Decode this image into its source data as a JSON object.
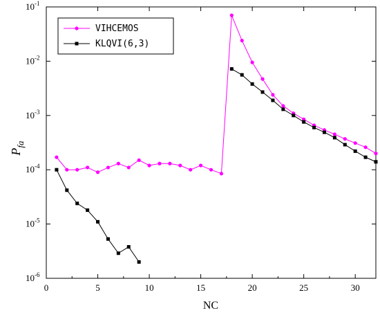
{
  "chart_data": {
    "type": "line",
    "xlabel": "NC",
    "ylabel": {
      "base": "P",
      "sub": "fa"
    },
    "xlim": [
      0,
      32
    ],
    "ylim": [
      1e-06,
      0.1
    ],
    "yscale": "log",
    "x_ticks": [
      0,
      5,
      10,
      15,
      20,
      25,
      30
    ],
    "y_ticks": [
      {
        "value": 1e-06,
        "base": "10",
        "exp": "-6"
      },
      {
        "value": 1e-05,
        "base": "10",
        "exp": "-5"
      },
      {
        "value": 0.0001,
        "base": "10",
        "exp": "-4"
      },
      {
        "value": 0.001,
        "base": "10",
        "exp": "-3"
      },
      {
        "value": 0.01,
        "base": "10",
        "exp": "-2"
      },
      {
        "value": 0.1,
        "base": "10",
        "exp": "-1"
      }
    ],
    "grid": false,
    "legend_position": "top-left",
    "series": [
      {
        "name": "VIHCEMOS",
        "color": "#ff00ff",
        "marker": "circle",
        "points": [
          [
            1,
            0.00017
          ],
          [
            2,
            0.0001
          ],
          [
            3,
            0.0001
          ],
          [
            4,
            0.00011
          ],
          [
            5,
            9e-05
          ],
          [
            6,
            0.00011
          ],
          [
            7,
            0.00013
          ],
          [
            8,
            0.00011
          ],
          [
            9,
            0.00015
          ],
          [
            10,
            0.00012
          ],
          [
            11,
            0.00013
          ],
          [
            12,
            0.00013
          ],
          [
            13,
            0.00012
          ],
          [
            14,
            0.0001
          ],
          [
            15,
            0.00012
          ],
          [
            16,
            0.0001
          ],
          [
            17,
            8.5e-05
          ],
          [
            18,
            0.07
          ],
          [
            19,
            0.024
          ],
          [
            20,
            0.0095
          ],
          [
            21,
            0.0047
          ],
          [
            22,
            0.0024
          ],
          [
            23,
            0.0015
          ],
          [
            24,
            0.0011
          ],
          [
            25,
            0.00085
          ],
          [
            26,
            0.00066
          ],
          [
            27,
            0.00054
          ],
          [
            28,
            0.00045
          ],
          [
            29,
            0.00037
          ],
          [
            30,
            0.00031
          ],
          [
            31,
            0.00026
          ],
          [
            32,
            0.0002
          ]
        ]
      },
      {
        "name": "KLQVI(6,3)",
        "color": "#000000",
        "marker": "square",
        "segments": [
          [
            [
              1,
              0.0001
            ],
            [
              2,
              4.2e-05
            ],
            [
              3,
              2.4e-05
            ],
            [
              4,
              1.8e-05
            ],
            [
              5,
              1.1e-05
            ],
            [
              6,
              5.3e-06
            ],
            [
              7,
              2.9e-06
            ],
            [
              8,
              3.8e-06
            ],
            [
              9,
              2e-06
            ]
          ],
          [
            [
              18,
              0.0072
            ],
            [
              19,
              0.0056
            ],
            [
              20,
              0.0038
            ],
            [
              21,
              0.0027
            ],
            [
              22,
              0.0019
            ],
            [
              23,
              0.0013
            ],
            [
              24,
              0.001
            ],
            [
              25,
              0.00076
            ],
            [
              26,
              0.0006
            ],
            [
              27,
              0.00049
            ],
            [
              28,
              0.00039
            ],
            [
              29,
              0.00029
            ],
            [
              30,
              0.00022
            ],
            [
              31,
              0.00017
            ],
            [
              32,
              0.00014
            ]
          ]
        ]
      }
    ]
  }
}
